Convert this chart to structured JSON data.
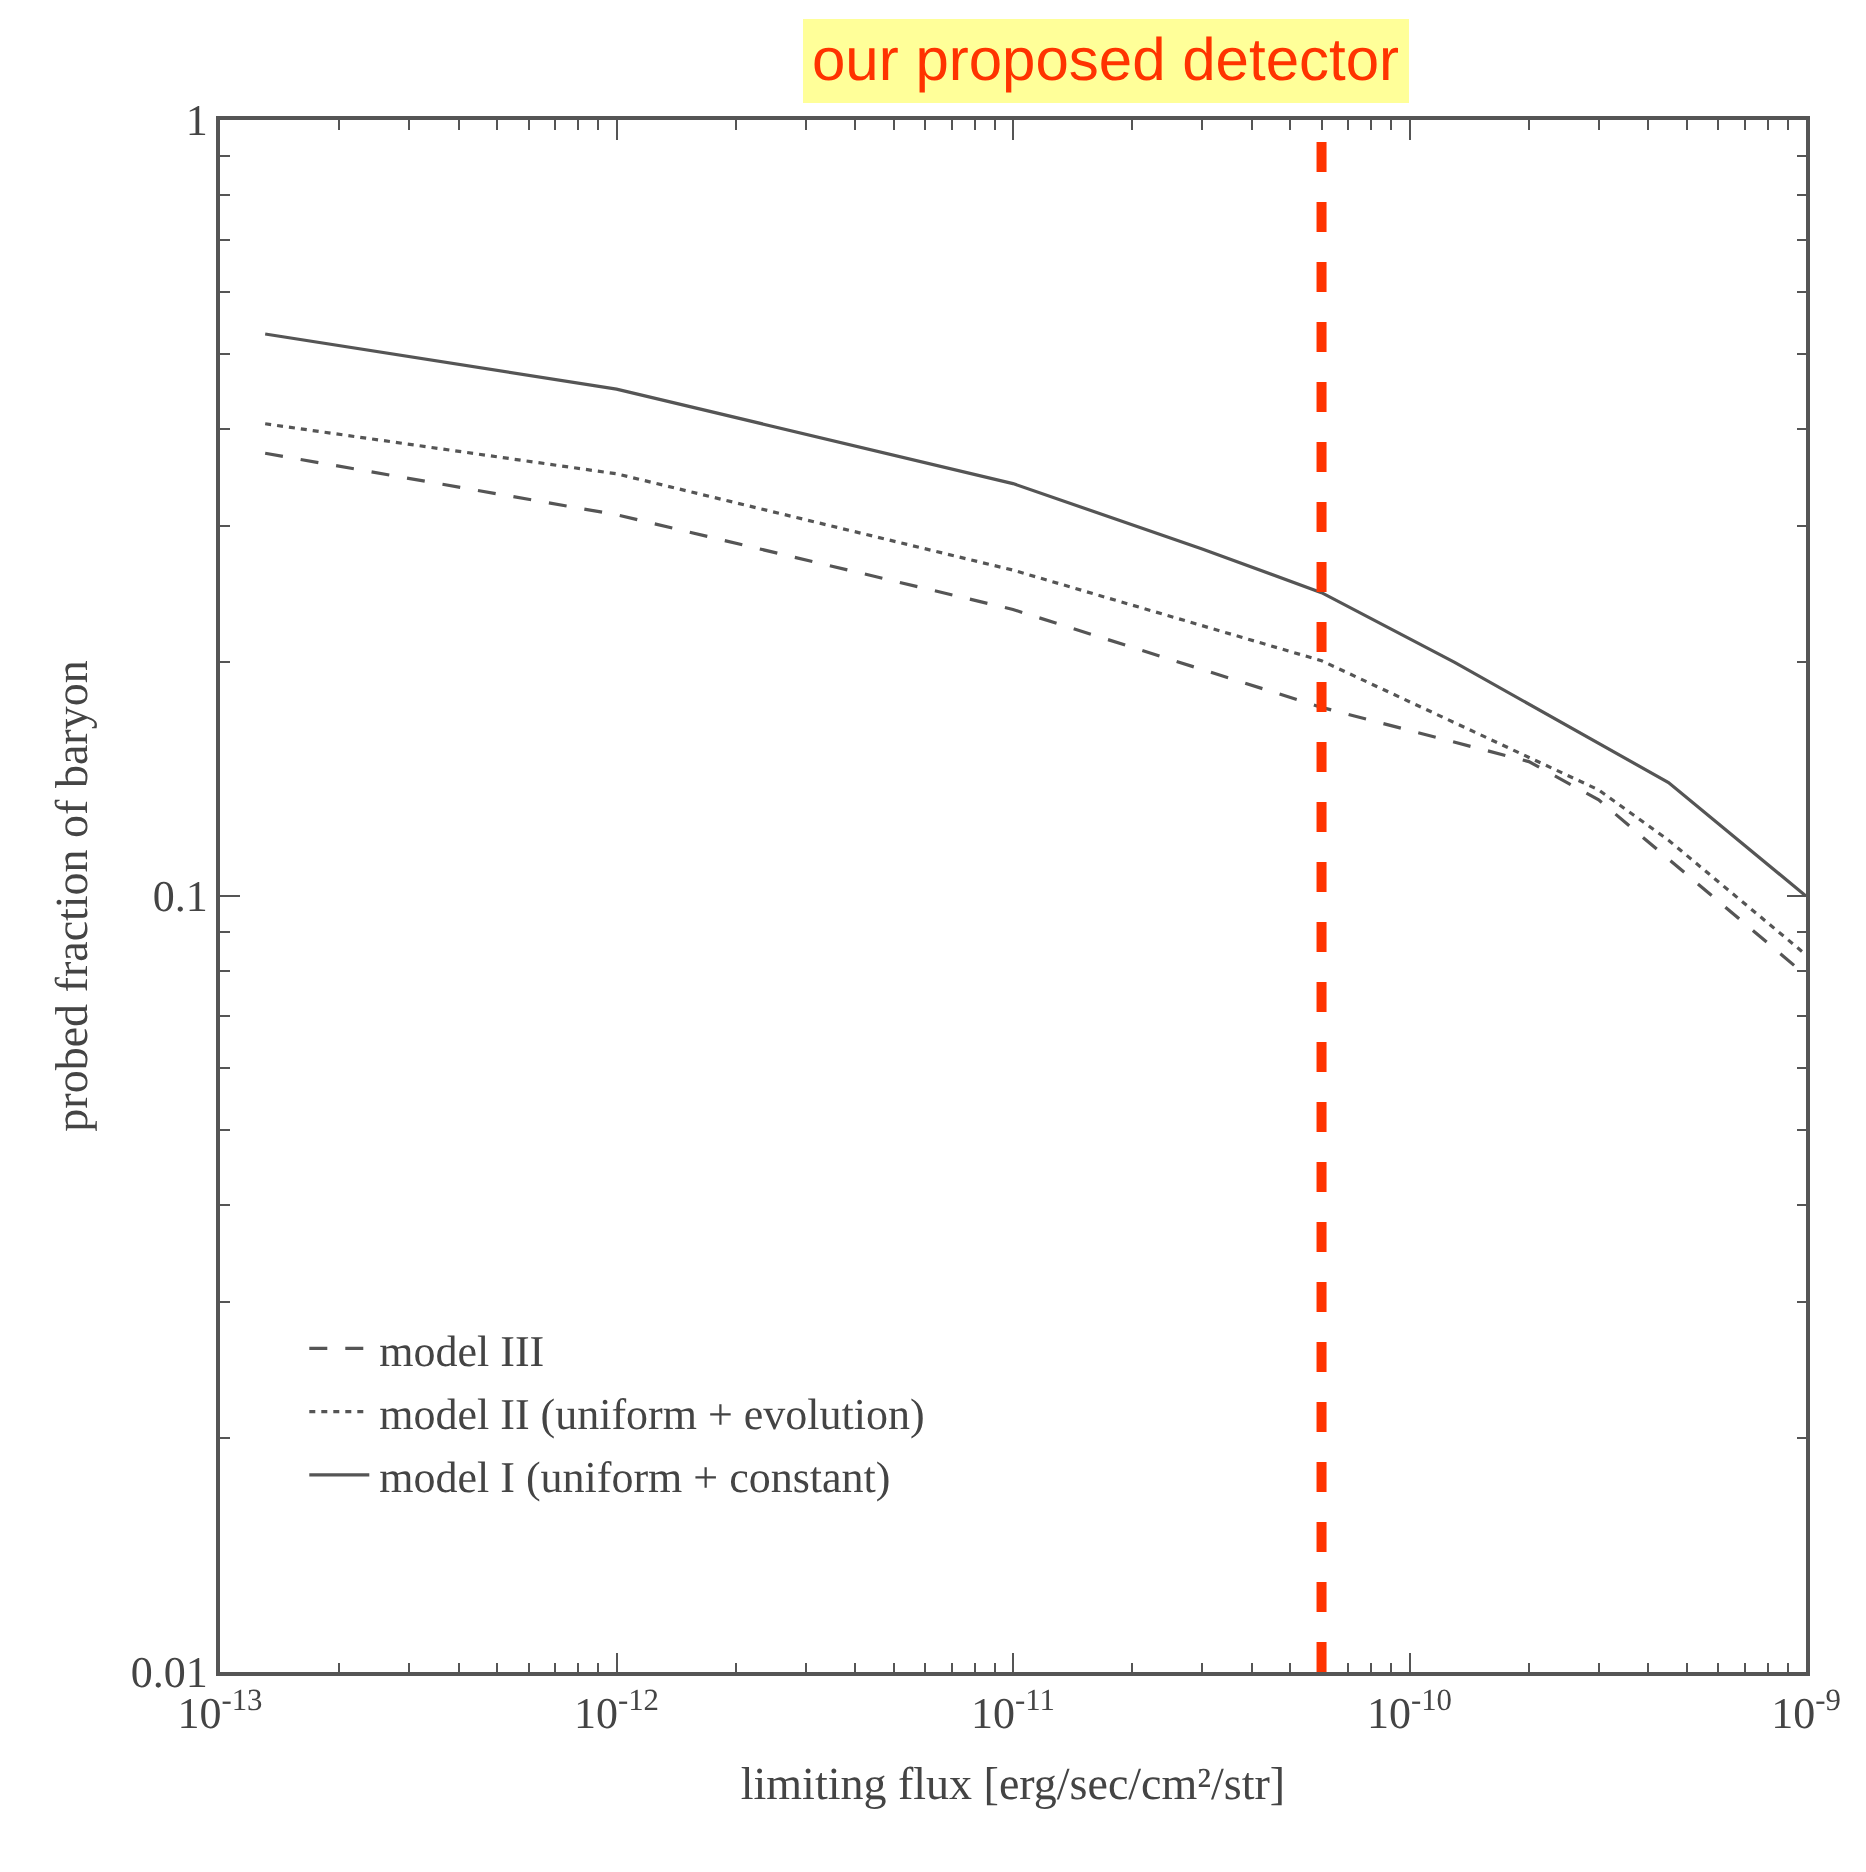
{
  "chart_data": {
    "type": "line",
    "xlabel": "limiting flux [erg/sec/cm²/str]",
    "ylabel": "probed fraction of baryon",
    "annotations": [
      "our proposed detector"
    ],
    "log": "xy",
    "legend": "bottom left",
    "xlim": [
      1e-13,
      1e-09
    ],
    "ylim": [
      0.01,
      1
    ],
    "xticks": [
      {
        "value": 1e-13,
        "label": "10$^{-13}$"
      },
      {
        "value": 1e-12,
        "label": "10$^{-12}$"
      },
      {
        "value": 1e-11,
        "label": "10$^{-11}$"
      },
      {
        "value": 1e-10,
        "label": "10$^{-10}$"
      },
      {
        "value": 1e-09,
        "label": "10$^{-9}$"
      }
    ],
    "yticks": [
      0.01,
      0.1,
      1
    ],
    "series": [
      {
        "name": "model III",
        "color": "#555555",
        "line_style": "dashed",
        "x": [
          1.3e-13,
          1e-12,
          1e-11,
          6e-11,
          2e-10,
          3e-10,
          1e-09
        ],
        "values": [
          0.372,
          0.31,
          0.234,
          0.175,
          0.149,
          0.133,
          0.079
        ]
      },
      {
        "name": "model II (uniform + evolution)",
        "color": "#555555",
        "line_style": "dotted",
        "x": [
          1.3e-13,
          1e-12,
          1e-11,
          6e-11,
          3e-10,
          4.5e-10,
          1e-09
        ],
        "values": [
          0.406,
          0.35,
          0.263,
          0.201,
          0.137,
          0.118,
          0.084
        ]
      },
      {
        "name": "model I (uniform + constant)",
        "color": "#555555",
        "line_style": "solid",
        "x": [
          1.3e-13,
          1e-12,
          1e-11,
          3e-11,
          6e-11,
          1.3e-10,
          4.5e-10,
          1e-09
        ],
        "values": [
          0.53,
          0.45,
          0.34,
          0.28,
          0.246,
          0.2,
          0.14,
          0.1
        ]
      }
    ],
    "ref_lines": [
      {
        "axis": "x",
        "value": 6e-11,
        "color": "#ff3300",
        "line_style": "dashed"
      }
    ]
  }
}
